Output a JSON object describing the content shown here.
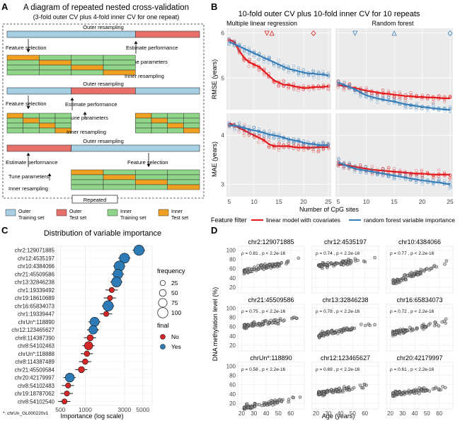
{
  "panel_a": {
    "letter": "A",
    "title": "A diagram of repeated nested cross-validation",
    "subtitle": "(3-fold outer CV plus 4-fold inner CV for one repeat)",
    "outer_resampling": "Outer resampling",
    "inner_resampling": "Inner resampling",
    "feature_selection": "Feature selection",
    "estimate_performance": "Estimate performance",
    "tune_parameters": "Tune parameters",
    "repeated": "Repeated",
    "legend": [
      {
        "label": "Outer\nTraining set",
        "color": "#a6cfe3"
      },
      {
        "label": "Outer\nTest set",
        "color": "#e8706a"
      },
      {
        "label": "Inner\nTraining set",
        "color": "#8fd68a"
      },
      {
        "label": "Inner\nTest set",
        "color": "#f0a020"
      }
    ]
  },
  "panel_b": {
    "letter": "B",
    "title": "10-fold outer CV plus 10-fold inner CV for 10 repeats",
    "facet_left": "Multiple linear regression",
    "facet_right": "Random forest",
    "ylabel_top": "RMSE (years)",
    "ylabel_bottom": "MAE (years)",
    "xlabel": "Number of CpG sites",
    "legend_title": "Feature filter",
    "legend_items": [
      {
        "label": "linear model with covariates",
        "color": "#e41a1c"
      },
      {
        "label": "random forest variable importance",
        "color": "#377eb8"
      }
    ]
  },
  "panel_c": {
    "letter": "C",
    "title": "Distribution of variable importance",
    "xlabel": "Importance (log scale)",
    "footnote": "*: chrUn_GL000220v1",
    "size_legend_title": "frequency",
    "size_legend": [
      "25",
      "50",
      "75",
      "100"
    ],
    "color_legend_title": "final",
    "color_legend": [
      {
        "label": "No",
        "color": "#d62728"
      },
      {
        "label": "Yes",
        "color": "#2c7bb6"
      }
    ]
  },
  "panel_d": {
    "letter": "D",
    "ylabel": "DNA methylation level (%)",
    "xlabel": "Age (years)",
    "facets": [
      {
        "title": "chr2:129071885",
        "stat": "ρ = 0.81 , p < 2.2e-16"
      },
      {
        "title": "chr12:4535197",
        "stat": "ρ = 0.74 , p < 2.2e-16"
      },
      {
        "title": "chr10:4384066",
        "stat": "ρ = 0.77 , p < 2.2e-16"
      },
      {
        "title": "chr21:45509586",
        "stat": "ρ = 0.75 , p < 2.2e-16"
      },
      {
        "title": "chr13:32846238",
        "stat": "ρ = 0.78 , p < 2.2e-16"
      },
      {
        "title": "chr16:65834073",
        "stat": "ρ = 0.72 , p < 2.2e-16"
      },
      {
        "title": "chrUn*:118890",
        "stat": "ρ = 0.58 , p < 2.2e-16"
      },
      {
        "title": "chr12:123465627",
        "stat": "ρ = 0.69 , p < 2.2e-16"
      },
      {
        "title": "chr20:42179997",
        "stat": "ρ = 0.61 , p < 2.2e-16"
      }
    ]
  },
  "chart_data": [
    {
      "type": "line",
      "panel": "B-RMSE-linear",
      "x": [
        5,
        6,
        7,
        8,
        9,
        10,
        11,
        12,
        13,
        14,
        15,
        16,
        17,
        18,
        19,
        20,
        21,
        22,
        23,
        24,
        25
      ],
      "series": [
        {
          "name": "linear model with covariates",
          "values": [
            5.85,
            5.8,
            5.6,
            5.45,
            5.35,
            5.3,
            5.25,
            5.15,
            5.05,
            4.95,
            4.9,
            4.85,
            4.85,
            4.82,
            4.8,
            4.78,
            4.78,
            4.8,
            4.8,
            4.8,
            4.82
          ]
        },
        {
          "name": "random forest variable importance",
          "values": [
            5.8,
            5.75,
            5.7,
            5.65,
            5.6,
            5.55,
            5.5,
            5.45,
            5.4,
            5.35,
            5.3,
            5.25,
            5.2,
            5.18,
            5.15,
            5.12,
            5.1,
            5.1,
            5.08,
            5.08,
            5.05
          ]
        }
      ],
      "ylim": [
        4.3,
        6.1
      ],
      "yticks": [
        5,
        6
      ],
      "ylabel": "RMSE (years)"
    },
    {
      "type": "line",
      "panel": "B-RMSE-rf",
      "x": [
        5,
        6,
        7,
        8,
        9,
        10,
        11,
        12,
        13,
        14,
        15,
        16,
        17,
        18,
        19,
        20,
        21,
        22,
        23,
        24,
        25
      ],
      "series": [
        {
          "name": "linear model with covariates",
          "values": [
            4.85,
            4.82,
            4.8,
            4.78,
            4.75,
            4.72,
            4.7,
            4.68,
            4.66,
            4.65,
            4.63,
            4.62,
            4.6,
            4.6,
            4.58,
            4.58,
            4.57,
            4.57,
            4.56,
            4.55,
            4.55
          ]
        },
        {
          "name": "random forest variable importance",
          "values": [
            4.9,
            4.85,
            4.8,
            4.75,
            4.68,
            4.62,
            4.58,
            4.55,
            4.52,
            4.5,
            4.48,
            4.45,
            4.42,
            4.4,
            4.38,
            4.36,
            4.35,
            4.33,
            4.32,
            4.3,
            4.3
          ]
        }
      ],
      "ylim": [
        4.3,
        6.1
      ],
      "yticks": [
        5,
        6
      ],
      "ylabel": "RMSE (years)"
    },
    {
      "type": "line",
      "panel": "B-MAE-linear",
      "x": [
        5,
        6,
        7,
        8,
        9,
        10,
        11,
        12,
        13,
        14,
        15,
        16,
        17,
        18,
        19,
        20,
        21,
        22,
        23,
        24,
        25
      ],
      "series": [
        {
          "name": "linear model with covariates",
          "values": [
            4.25,
            4.2,
            4.15,
            4.1,
            4.05,
            4.0,
            3.95,
            3.9,
            3.82,
            3.78,
            3.78,
            3.78,
            3.78,
            3.76,
            3.75,
            3.75,
            3.75,
            3.75,
            3.76,
            3.76,
            3.76
          ]
        },
        {
          "name": "random forest variable importance",
          "values": [
            4.2,
            4.2,
            4.18,
            4.15,
            4.12,
            4.1,
            4.08,
            4.05,
            4.02,
            4.0,
            3.98,
            3.95,
            3.92,
            3.9,
            3.88,
            3.85,
            3.83,
            3.82,
            3.8,
            3.8,
            3.8
          ]
        }
      ],
      "ylim": [
        2.75,
        4.45
      ],
      "yticks": [
        3,
        4
      ],
      "ylabel": "MAE (years)"
    },
    {
      "type": "line",
      "panel": "B-MAE-rf",
      "x": [
        5,
        6,
        7,
        8,
        9,
        10,
        11,
        12,
        13,
        14,
        15,
        16,
        17,
        18,
        19,
        20,
        21,
        22,
        23,
        24,
        25
      ],
      "series": [
        {
          "name": "linear model with covariates",
          "values": [
            3.4,
            3.4,
            3.38,
            3.36,
            3.34,
            3.32,
            3.3,
            3.29,
            3.28,
            3.27,
            3.26,
            3.25,
            3.24,
            3.23,
            3.22,
            3.22,
            3.21,
            3.2,
            3.2,
            3.2,
            3.2
          ]
        },
        {
          "name": "random forest variable importance",
          "values": [
            3.45,
            3.4,
            3.36,
            3.32,
            3.3,
            3.28,
            3.26,
            3.24,
            3.22,
            3.2,
            3.18,
            3.16,
            3.14,
            3.12,
            3.1,
            3.08,
            3.07,
            3.05,
            3.04,
            3.02,
            3.0
          ]
        }
      ],
      "ylim": [
        2.75,
        4.45
      ],
      "yticks": [
        3,
        4
      ],
      "ylabel": "MAE (years)"
    },
    {
      "type": "scatter",
      "panel": "C",
      "categories": [
        "chr2:129071885",
        "chr12:4535197",
        "chr10:4384066",
        "chr21:45509586",
        "chr13:32846238",
        "chr1:19339492",
        "chr19:18610689",
        "chr16:65834073",
        "chr1:19339447",
        "chrUn*:118890",
        "chr12:123465627",
        "chr8:114387390",
        "chr8:54102463",
        "chrUn*:118888",
        "chr8:114387489",
        "chr21:45509584",
        "chr20:42179997",
        "chr8:54102483",
        "chr19:18787062",
        "chr8:54102540"
      ],
      "importance": [
        4500,
        3000,
        2600,
        2500,
        2400,
        2100,
        2000,
        1900,
        1800,
        1300,
        1250,
        1150,
        1100,
        1050,
        1000,
        900,
        650,
        620,
        600,
        560
      ],
      "frequency": [
        100,
        95,
        100,
        90,
        95,
        25,
        25,
        100,
        25,
        85,
        75,
        40,
        70,
        30,
        30,
        40,
        80,
        25,
        25,
        25
      ],
      "final": [
        "Yes",
        "Yes",
        "Yes",
        "Yes",
        "Yes",
        "No",
        "No",
        "Yes",
        "No",
        "Yes",
        "Yes",
        "No",
        "No",
        "No",
        "No",
        "No",
        "Yes",
        "No",
        "No",
        "No"
      ],
      "xticks": [
        500,
        1000,
        3000,
        5000
      ],
      "xlabel": "Importance (log scale)"
    },
    {
      "type": "scatter",
      "panel": "D",
      "xlabel": "Age (years)",
      "ylabel": "DNA methylation level (%)",
      "xticks": [
        20,
        30,
        40,
        50,
        60
      ],
      "yticks": [
        20,
        40,
        60,
        80,
        100
      ],
      "rho": [
        0.81,
        0.74,
        0.77,
        0.75,
        0.78,
        0.72,
        0.58,
        0.69,
        0.61
      ],
      "intercept_at_20": [
        52,
        65,
        30,
        60,
        40,
        45,
        10,
        40,
        40
      ],
      "slope_per_year": [
        0.6,
        0.35,
        0.9,
        0.4,
        0.55,
        0.55,
        0.5,
        0.45,
        0.3
      ]
    }
  ]
}
